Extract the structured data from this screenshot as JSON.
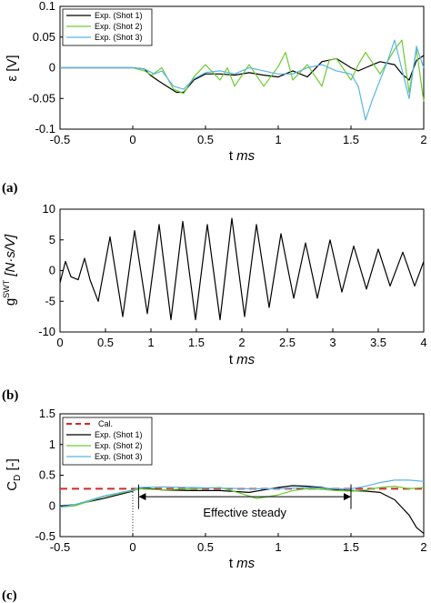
{
  "chart_data": [
    {
      "type": "line",
      "panel_label": "(a)",
      "ylabel": "ε [V]",
      "xlabel_main": "t ",
      "xlabel_unit": "ms",
      "xlim": [
        -0.5,
        2
      ],
      "ylim": [
        -0.1,
        0.1
      ],
      "xticks": [
        -0.5,
        0,
        0.5,
        1,
        1.5,
        2
      ],
      "xtick_labels": [
        "-0.5",
        "0",
        "0.5",
        "1",
        "1.5",
        "2"
      ],
      "yticks": [
        -0.1,
        -0.05,
        0,
        0.05,
        0.1
      ],
      "ytick_labels": [
        "-0.1",
        "-0.05",
        "0",
        "0.05",
        "0.1"
      ],
      "grid": false,
      "legend": "top-left",
      "series": [
        {
          "name": "Exp. (Shot 1)",
          "color": "#000000",
          "x": [
            -0.5,
            -0.2,
            0,
            0.08,
            0.12,
            0.18,
            0.22,
            0.3,
            0.35,
            0.42,
            0.5,
            0.6,
            0.7,
            0.8,
            0.9,
            1.0,
            1.1,
            1.2,
            1.3,
            1.4,
            1.5,
            1.55,
            1.6,
            1.65,
            1.7,
            1.8,
            1.85,
            1.9,
            1.95,
            2.0
          ],
          "y": [
            0,
            0,
            0,
            -0.002,
            -0.012,
            -0.022,
            -0.028,
            -0.04,
            -0.04,
            -0.02,
            -0.01,
            -0.01,
            -0.012,
            -0.008,
            -0.012,
            -0.015,
            -0.005,
            -0.015,
            0.01,
            0.015,
            0,
            -0.005,
            0,
            0.005,
            0.01,
            0.005,
            -0.01,
            -0.02,
            0.012,
            0.02
          ]
        },
        {
          "name": "Exp. (Shot 2)",
          "color": "#6acc2e",
          "x": [
            -0.5,
            -0.2,
            0,
            0.08,
            0.13,
            0.2,
            0.28,
            0.35,
            0.42,
            0.5,
            0.6,
            0.65,
            0.7,
            0.8,
            0.9,
            1.0,
            1.05,
            1.1,
            1.2,
            1.3,
            1.35,
            1.4,
            1.5,
            1.55,
            1.6,
            1.7,
            1.8,
            1.85,
            1.9,
            1.95,
            2.0
          ],
          "y": [
            0,
            0,
            0,
            -0.005,
            -0.012,
            0,
            -0.035,
            -0.042,
            -0.015,
            0.005,
            -0.02,
            0.0,
            -0.03,
            0.005,
            -0.03,
            0.002,
            0.025,
            -0.02,
            0.005,
            -0.03,
            0.012,
            0.015,
            -0.02,
            0.005,
            0.025,
            -0.01,
            0.03,
            0.045,
            -0.04,
            0.03,
            -0.055
          ]
        },
        {
          "name": "Exp. (Shot 3)",
          "color": "#5ab4e6",
          "x": [
            -0.5,
            -0.2,
            0,
            0.08,
            0.15,
            0.2,
            0.28,
            0.35,
            0.42,
            0.5,
            0.6,
            0.7,
            0.8,
            0.9,
            1.0,
            1.1,
            1.2,
            1.3,
            1.4,
            1.5,
            1.55,
            1.6,
            1.65,
            1.7,
            1.75,
            1.8,
            1.9,
            1.95,
            2.0
          ],
          "y": [
            0,
            0,
            0,
            -0.002,
            -0.01,
            -0.005,
            -0.03,
            -0.035,
            -0.018,
            -0.008,
            -0.005,
            -0.01,
            0.0,
            -0.005,
            -0.01,
            -0.01,
            0.0,
            0.005,
            -0.005,
            -0.01,
            -0.03,
            -0.085,
            -0.05,
            -0.02,
            0.01,
            0.045,
            -0.05,
            0.035,
            0.0
          ]
        }
      ]
    },
    {
      "type": "line",
      "panel_label": "(b)",
      "ylabel_main": "g",
      "ylabel_sup": "SWT",
      "ylabel_unit": " [N·s/V]",
      "xlabel_main": "t ",
      "xlabel_unit": "ms",
      "xlim": [
        0,
        4
      ],
      "ylim": [
        -10,
        10
      ],
      "xticks": [
        0,
        0.5,
        1,
        1.5,
        2,
        2.5,
        3,
        3.5,
        4
      ],
      "xtick_labels": [
        "0",
        "0.5",
        "1",
        "1.5",
        "2",
        "2.5",
        "3",
        "3.5",
        "4"
      ],
      "yticks": [
        -10,
        -5,
        0,
        5,
        10
      ],
      "ytick_labels": [
        "-10",
        "-5",
        "0",
        "5",
        "10"
      ],
      "grid": false,
      "series": [
        {
          "name": "",
          "color": "#000000",
          "x": [
            0,
            0.06,
            0.12,
            0.2,
            0.27,
            0.33,
            0.42,
            0.55,
            0.69,
            0.82,
            0.96,
            1.09,
            1.22,
            1.35,
            1.49,
            1.62,
            1.76,
            1.89,
            2.03,
            2.16,
            2.3,
            2.43,
            2.57,
            2.7,
            2.83,
            2.97,
            3.1,
            3.23,
            3.37,
            3.5,
            3.63,
            3.77,
            3.9,
            4.0
          ],
          "y": [
            -2,
            1.5,
            -1,
            -1.5,
            2,
            -1.5,
            -5,
            5.5,
            -7.5,
            6.5,
            -7,
            7.5,
            -8,
            8,
            -8,
            7.5,
            -8,
            8.5,
            -7.5,
            7.5,
            -6,
            6,
            -4.5,
            4.5,
            -4.5,
            5,
            -3.5,
            4,
            -3,
            3.5,
            -2.5,
            3,
            -2.5,
            1.5
          ]
        }
      ]
    },
    {
      "type": "line",
      "panel_label": "(c)",
      "ylabel_main": "C",
      "ylabel_sub": "D",
      "ylabel_unit": " [-]",
      "xlabel_main": "t ",
      "xlabel_unit": "ms",
      "xlim": [
        -0.5,
        2
      ],
      "ylim": [
        -0.5,
        1.5
      ],
      "xticks": [
        -0.5,
        0,
        0.5,
        1,
        1.5,
        2
      ],
      "xtick_labels": [
        "-0.5",
        "0",
        "0.5",
        "1",
        "1.5",
        "2"
      ],
      "yticks": [
        -0.5,
        0,
        0.5,
        1,
        1.5
      ],
      "ytick_labels": [
        "-0.5",
        "0",
        "0.5",
        "1",
        "1.5"
      ],
      "grid": false,
      "legend": "top-left",
      "annotation": {
        "text": "Effective steady",
        "x_start": 0.04,
        "x_end": 1.5,
        "y": 0.15
      },
      "series": [
        {
          "name": "Cal.",
          "color": "#d62728",
          "dashed": true,
          "x": [
            -0.5,
            2.0
          ],
          "y": [
            0.28,
            0.28
          ]
        },
        {
          "name": "Exp. (Shot 1)",
          "color": "#000000",
          "x": [
            -0.5,
            -0.4,
            -0.2,
            0,
            0.05,
            0.2,
            0.4,
            0.6,
            0.8,
            0.9,
            1.0,
            1.1,
            1.2,
            1.3,
            1.4,
            1.5,
            1.6,
            1.7,
            1.8,
            1.9,
            1.95,
            2.0
          ],
          "y": [
            0.0,
            0.02,
            0.12,
            0.24,
            0.3,
            0.26,
            0.25,
            0.25,
            0.22,
            0.26,
            0.3,
            0.33,
            0.32,
            0.3,
            0.26,
            0.25,
            0.24,
            0.22,
            0.1,
            -0.15,
            -0.35,
            -0.45
          ]
        },
        {
          "name": "Exp. (Shot 2)",
          "color": "#6acc2e",
          "x": [
            -0.5,
            -0.4,
            -0.2,
            0,
            0.05,
            0.2,
            0.4,
            0.6,
            0.75,
            0.85,
            1.0,
            1.1,
            1.2,
            1.3,
            1.4,
            1.5,
            1.6,
            1.7,
            1.8,
            1.9,
            2.0
          ],
          "y": [
            -0.02,
            0.0,
            0.15,
            0.25,
            0.28,
            0.26,
            0.28,
            0.3,
            0.2,
            0.12,
            0.18,
            0.25,
            0.28,
            0.27,
            0.25,
            0.24,
            0.26,
            0.3,
            0.32,
            0.28,
            0.3
          ]
        },
        {
          "name": "Exp. (Shot 3)",
          "color": "#5ab4e6",
          "x": [
            -0.5,
            -0.4,
            -0.2,
            0,
            0.05,
            0.2,
            0.4,
            0.6,
            0.8,
            1.0,
            1.2,
            1.4,
            1.5,
            1.6,
            1.7,
            1.8,
            1.9,
            2.0
          ],
          "y": [
            -0.02,
            0.02,
            0.16,
            0.26,
            0.3,
            0.31,
            0.3,
            0.29,
            0.28,
            0.28,
            0.3,
            0.28,
            0.28,
            0.32,
            0.38,
            0.42,
            0.42,
            0.4
          ]
        }
      ]
    }
  ]
}
